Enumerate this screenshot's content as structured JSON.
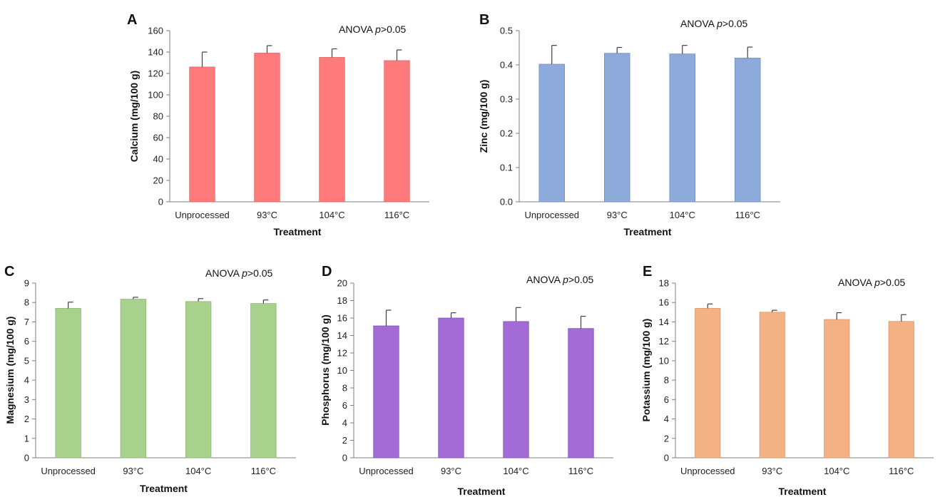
{
  "figure": {
    "annotation_prefix": "ANOVA ",
    "annotation_p": "p",
    "annotation_suffix": ">0.05"
  },
  "chart_data": [
    {
      "type": "bar",
      "panel": "A",
      "categories": [
        "Unprocessed",
        "93°C",
        "104°C",
        "116°C"
      ],
      "values": [
        126,
        139,
        135,
        132
      ],
      "errors": [
        14,
        7,
        8,
        10
      ],
      "color": "#ff7b7b",
      "edge": "#e06060",
      "xlabel": "Treatment",
      "ylabel": "Calcium (mg/100 g)",
      "ylim": [
        0,
        160
      ],
      "yticks": [
        0,
        20,
        40,
        60,
        80,
        100,
        120,
        140,
        160
      ],
      "decimals": 0
    },
    {
      "type": "bar",
      "panel": "B",
      "categories": [
        "Unprocessed",
        "93°C",
        "104°C",
        "116°C"
      ],
      "values": [
        0.402,
        0.434,
        0.432,
        0.42
      ],
      "errors": [
        0.055,
        0.017,
        0.025,
        0.032
      ],
      "color": "#8eaadb",
      "edge": "#7090c0",
      "xlabel": "Treatment",
      "ylabel": "Zinc (mg/100 g)",
      "ylim": [
        0,
        0.5
      ],
      "yticks": [
        0,
        0.1,
        0.2,
        0.3,
        0.4,
        0.5
      ],
      "decimals": 1
    },
    {
      "type": "bar",
      "panel": "C",
      "categories": [
        "Unprocessed",
        "93°C",
        "104°C",
        "116°C"
      ],
      "values": [
        7.7,
        8.17,
        8.05,
        7.95
      ],
      "errors": [
        0.32,
        0.1,
        0.15,
        0.18
      ],
      "color": "#a9d18e",
      "edge": "#8fb874",
      "xlabel": "Treatment",
      "ylabel": "Magnesium (mg/100 g)",
      "ylim": [
        0,
        9
      ],
      "yticks": [
        0,
        1,
        2,
        3,
        4,
        5,
        6,
        7,
        8,
        9
      ],
      "decimals": 0
    },
    {
      "type": "bar",
      "panel": "D",
      "categories": [
        "Unprocessed",
        "93°C",
        "104°C",
        "116°C"
      ],
      "values": [
        15.1,
        16.0,
        15.6,
        14.8
      ],
      "errors": [
        1.8,
        0.6,
        1.6,
        1.4
      ],
      "color": "#a36bd6",
      "edge": "#8850bd",
      "xlabel": "Treatment",
      "ylabel": "Phosphorus (mg/100 g)",
      "ylim": [
        0,
        20
      ],
      "yticks": [
        0,
        2,
        4,
        6,
        8,
        10,
        12,
        14,
        16,
        18,
        20
      ],
      "decimals": 0
    },
    {
      "type": "bar",
      "panel": "E",
      "categories": [
        "Unprocessed",
        "93°C",
        "104°C",
        "116°C"
      ],
      "values": [
        15.4,
        15.0,
        14.25,
        14.05
      ],
      "errors": [
        0.45,
        0.2,
        0.7,
        0.7
      ],
      "color": "#f4b183",
      "edge": "#dc9868",
      "xlabel": "Treatment",
      "ylabel": "Potassium (mg/100 g)",
      "ylim": [
        0,
        18
      ],
      "yticks": [
        0,
        2,
        4,
        6,
        8,
        10,
        12,
        14,
        16,
        18
      ],
      "decimals": 0
    }
  ]
}
